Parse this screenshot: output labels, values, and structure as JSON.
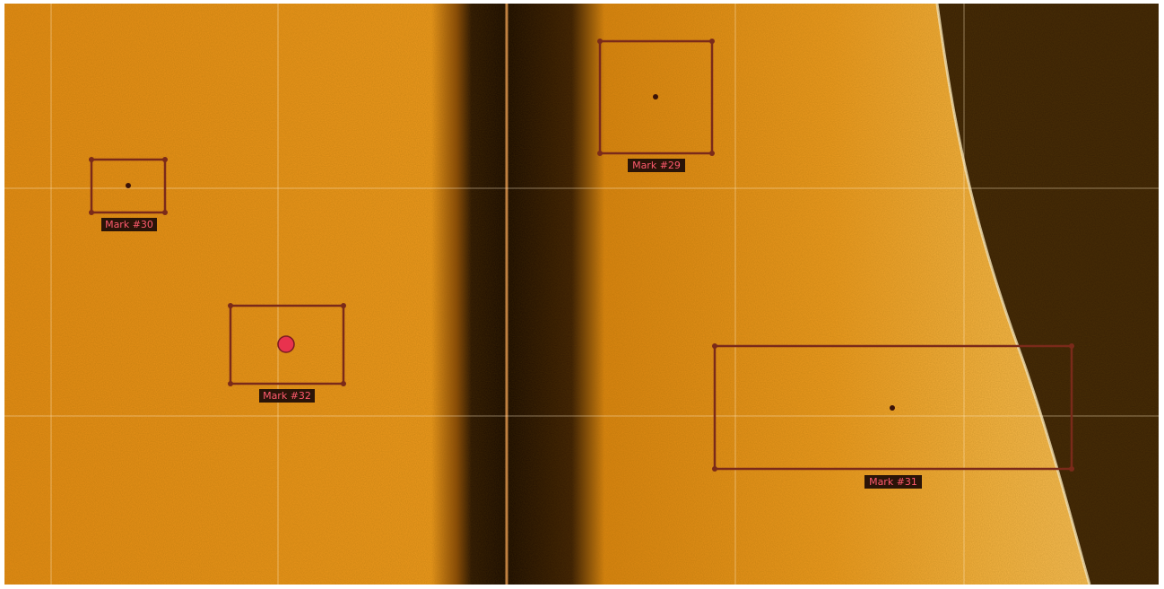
{
  "marks": [
    {
      "label": "Mark #30"
    },
    {
      "label": "Mark #32"
    },
    {
      "label": "Mark #29"
    },
    {
      "label": "Mark #31"
    }
  ]
}
